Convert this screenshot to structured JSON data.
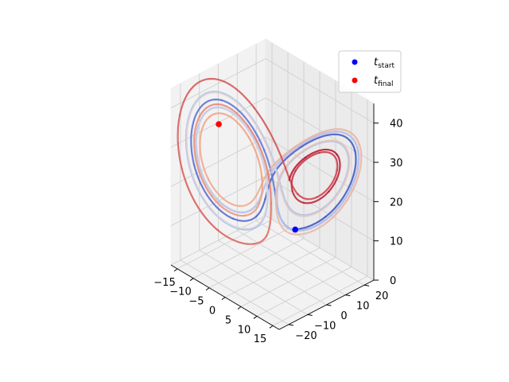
{
  "chart_data": {
    "type": "line",
    "projection": "3d",
    "title": "",
    "axes": {
      "x": {
        "label": "",
        "ticks": [
          -15,
          -10,
          -5,
          0,
          5,
          10,
          15
        ],
        "tick_labels": [
          "−15",
          "−10",
          "−5",
          "0",
          "5",
          "10",
          "15"
        ],
        "range": [
          -17,
          17
        ]
      },
      "y": {
        "label": "",
        "ticks": [
          -20,
          -10,
          0,
          10,
          20
        ],
        "tick_labels": [
          "−20",
          "−10",
          "0",
          "10",
          "20"
        ],
        "range": [
          -25,
          25
        ]
      },
      "z": {
        "label": "",
        "ticks": [
          0,
          10,
          20,
          30,
          40
        ],
        "tick_labels": [
          "0",
          "10",
          "20",
          "30",
          "40"
        ],
        "range": [
          0,
          45
        ]
      }
    },
    "grid": true,
    "colormap": "coolwarm (colored by time)",
    "trajectory": "Lorenz attractor",
    "markers": [
      {
        "name": "t_start",
        "label_base": "t",
        "label_sub": "start",
        "color": "#0000ff",
        "point": [
          4.5,
          4.5,
          12.0
        ]
      },
      {
        "name": "t_final",
        "label_base": "t",
        "label_sub": "final",
        "color": "#ff0000",
        "point": [
          -11.5,
          -9.0,
          34.5
        ]
      }
    ],
    "legend": {
      "placement": "top-right"
    }
  }
}
